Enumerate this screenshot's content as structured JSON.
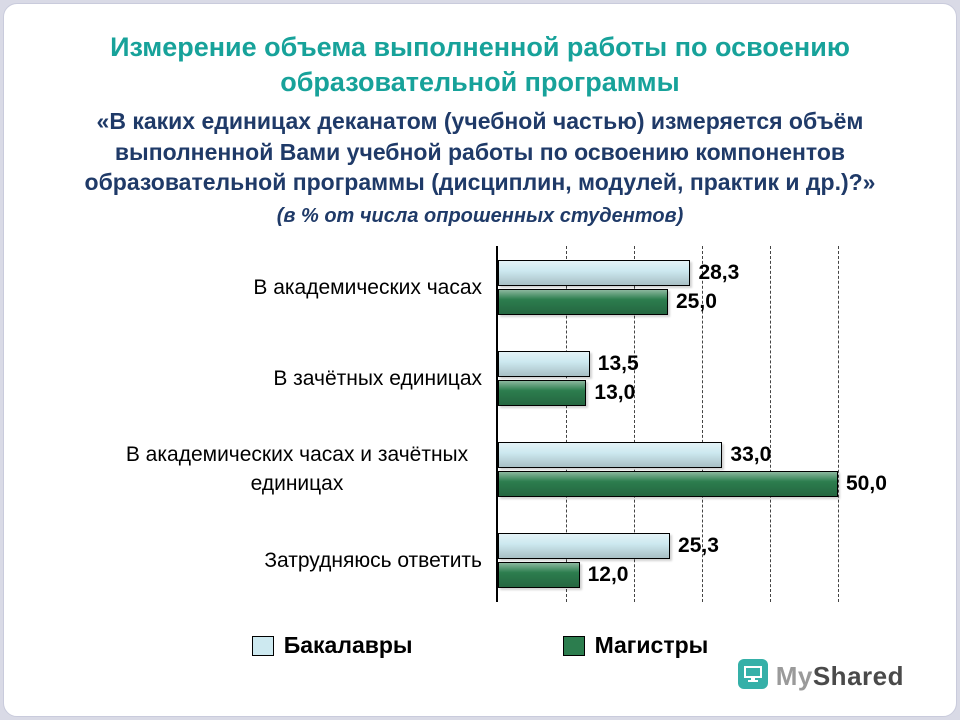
{
  "slide": {
    "title": "Измерение объема выполненной работы по освоению образовательной программы",
    "subtitle": "«В каких единицах деканатом (учебной частью) измеряется объём выполненной Вами учебной работы по освоению компонентов образовательной программы (дисциплин, модулей, практик и др.)?»",
    "note": "(в % от числа опрошенных студентов)"
  },
  "chart_data": {
    "type": "bar",
    "orientation": "horizontal",
    "title": "Измерение объема выполненной работы по освоению образовательной программы",
    "categories": [
      "В академических часах",
      "В зачётных единицах",
      "В академических часах и зачётных единицах",
      "Затрудняюсь ответить"
    ],
    "series": [
      {
        "name": "Бакалавры",
        "color": "#cde9f0",
        "values": [
          28.3,
          13.5,
          33.0,
          25.3
        ],
        "labels": [
          "28,3",
          "13,5",
          "33,0",
          "25,3"
        ]
      },
      {
        "name": "Магистры",
        "color": "#2c7d4e",
        "values": [
          25.0,
          13.0,
          50.0,
          12.0
        ],
        "labels": [
          "25,0",
          "13,0",
          "50,0",
          "12,0"
        ]
      }
    ],
    "xlim": [
      0,
      50
    ],
    "gridline_step": 10,
    "grid": "dashed-vertical",
    "legend_position": "bottom"
  },
  "watermark": {
    "my": "My",
    "shared": "Shared"
  },
  "colors": {
    "title": "#17a29a",
    "subtitle": "#1f3a68",
    "bachelors_bar": "#cde9f0",
    "masters_bar": "#2c7d4e"
  }
}
